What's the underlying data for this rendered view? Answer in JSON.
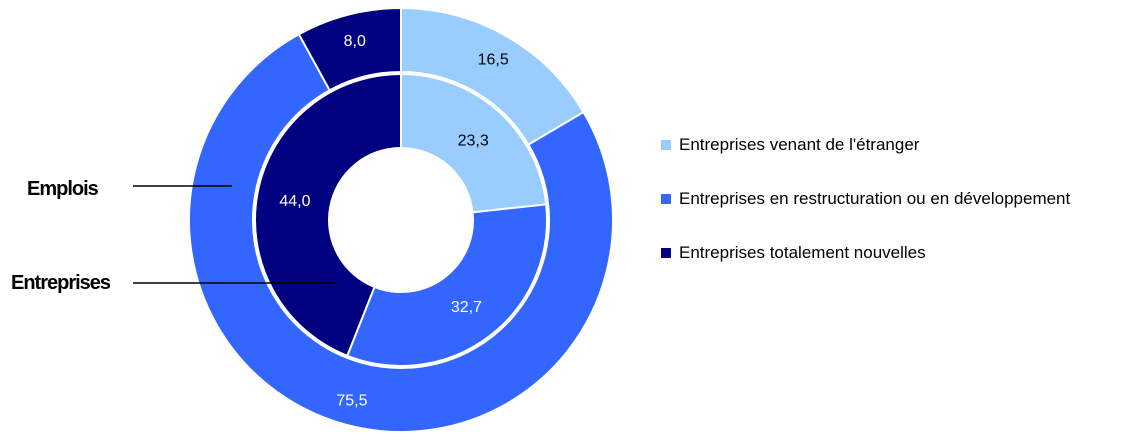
{
  "chart_data": {
    "type": "donut",
    "categories": [
      "Entreprises venant de l'étranger",
      "Entreprises en restructuration ou en développement",
      "Entreprises totalement nouvelles"
    ],
    "colors": [
      "#99ccff",
      "#3366ff",
      "#000080"
    ],
    "series": [
      {
        "name": "Emplois",
        "ring": "outer",
        "values": [
          16.5,
          75.5,
          8.0
        ],
        "labels": [
          "16,5",
          "75,5",
          "8,0"
        ]
      },
      {
        "name": "Entreprises",
        "ring": "inner",
        "values": [
          23.3,
          32.7,
          44.0
        ],
        "labels": [
          "23,3",
          "32,7",
          "44,0"
        ]
      }
    ],
    "legend": [
      "Entreprises venant de l'étranger",
      "Entreprises en restructuration ou en développement",
      "Entreprises totalement nouvelles"
    ],
    "legend_position": "right"
  }
}
